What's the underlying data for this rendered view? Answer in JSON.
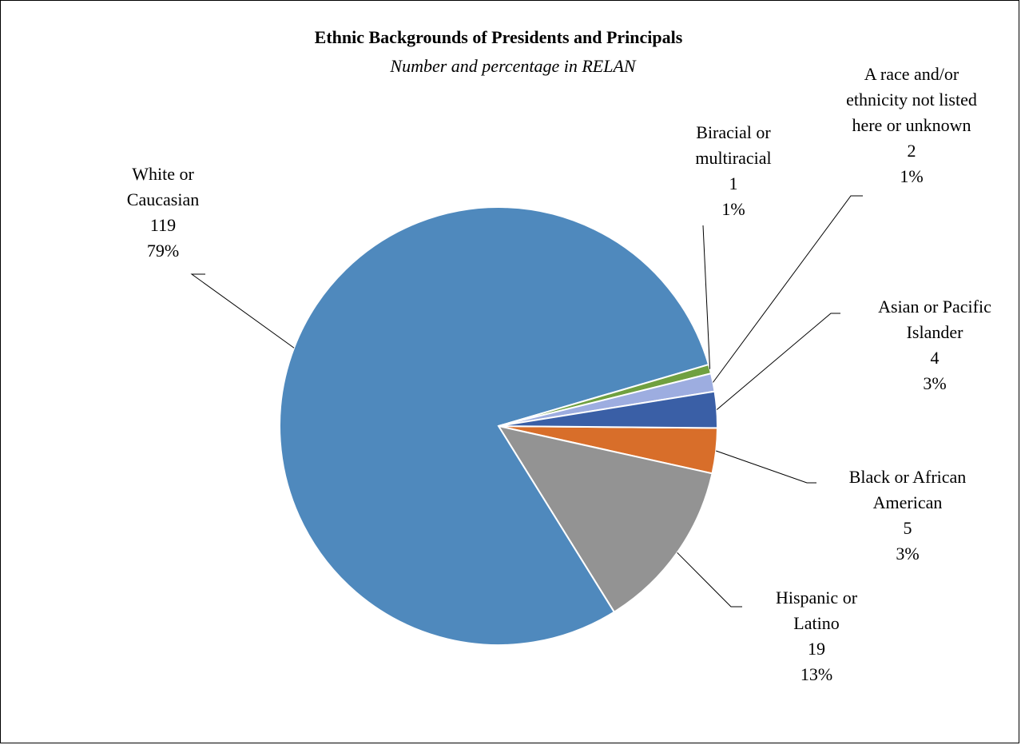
{
  "chart_data": {
    "type": "pie",
    "title": "Ethnic Backgrounds of Presidents and Principals",
    "subtitle": "Number and percentage in RELAN",
    "slices": [
      {
        "name": "White or Caucasian",
        "name_lines": [
          "White or",
          "Caucasian"
        ],
        "value": 119,
        "percent_label": "79%",
        "color": "#4F89BD"
      },
      {
        "name": "Biracial or multiracial",
        "name_lines": [
          "Biracial or",
          "multiracial"
        ],
        "value": 1,
        "percent_label": "1%",
        "color": "#70A040"
      },
      {
        "name": "A race and/or ethnicity not listed here or unknown",
        "name_lines": [
          "A race and/or",
          "ethnicity not listed",
          "here or unknown"
        ],
        "value": 2,
        "percent_label": "1%",
        "color": "#9DADE0"
      },
      {
        "name": "Asian or Pacific Islander",
        "name_lines": [
          "Asian or Pacific",
          "Islander"
        ],
        "value": 4,
        "percent_label": "3%",
        "color": "#3A5FA6"
      },
      {
        "name": "Black or African American",
        "name_lines": [
          "Black or African",
          "American"
        ],
        "value": 5,
        "percent_label": "3%",
        "color": "#D86E2A"
      },
      {
        "name": "Hispanic or Latino",
        "name_lines": [
          "Hispanic or",
          "Latino"
        ],
        "value": 19,
        "percent_label": "13%",
        "color": "#939393"
      }
    ],
    "legend": "none",
    "data_labels": "outside-with-leader-lines"
  }
}
